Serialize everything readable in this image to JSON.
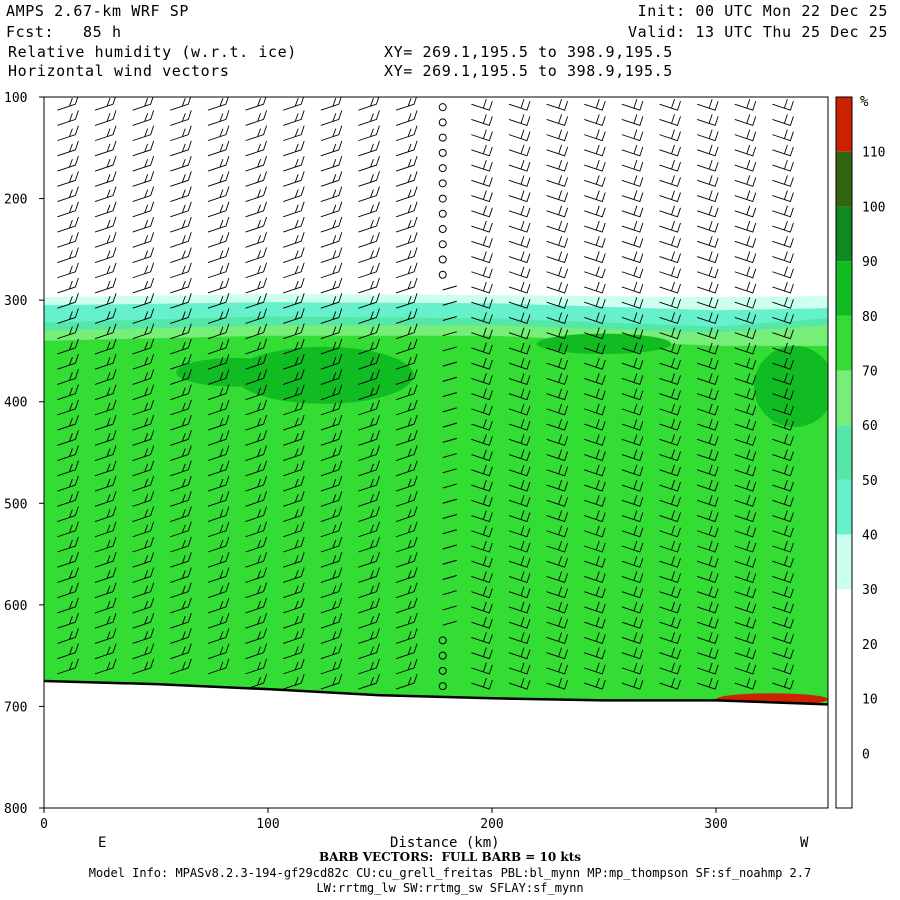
{
  "header": {
    "model": "AMPS 2.67-km WRF SP",
    "init": "Init: 00 UTC Mon 22 Dec 25",
    "fcst": "Fcst:   85 h",
    "valid": "Valid: 13 UTC Thu 25 Dec 25",
    "field1": "Relative humidity (w.r.t. ice)",
    "field2": "Horizontal wind vectors",
    "xy1": "XY= 269.1,195.5 to 398.9,195.5",
    "xy2": "XY= 269.1,195.5 to 398.9,195.5"
  },
  "footer": {
    "barb_note": "BARB VECTORS:  FULL BARB = 10 kts",
    "model_info": "Model Info: MPASv8.2.3-194-gf29cd82c CU:cu_grell_freitas PBL:bl_mynn MP:mp_thompson SF:sf_noahmp 2.7",
    "model_info2": "LW:rrtmg_lw SW:rrtmg_sw SFLAY:sf_mynn"
  },
  "chart_data": {
    "type": "heatmap",
    "xlabel": "Distance (km)",
    "ylabel": "",
    "xlim": [
      0,
      350
    ],
    "ylim": [
      800,
      100
    ],
    "x_ticks": [
      0,
      100,
      200,
      300
    ],
    "y_ticks": [
      100,
      200,
      300,
      400,
      500,
      600,
      700,
      800
    ],
    "x_end_labels": {
      "left": "E",
      "right": "W"
    },
    "colorbar": {
      "unit": "%",
      "levels": [
        0,
        10,
        20,
        30,
        40,
        50,
        60,
        70,
        80,
        90,
        100,
        110
      ],
      "colors": [
        "#ffffff",
        "#ffffff",
        "#ffffff",
        "#ccfff0",
        "#66f0cc",
        "#55e7a8",
        "#77ee77",
        "#33dd33",
        "#11bb22",
        "#118822",
        "#336611",
        "#cc2200"
      ]
    },
    "terrain_pressure": [
      [
        0,
        675
      ],
      [
        50,
        678
      ],
      [
        100,
        683
      ],
      [
        150,
        689
      ],
      [
        200,
        692
      ],
      [
        250,
        694
      ],
      [
        300,
        694
      ],
      [
        350,
        698
      ]
    ],
    "rh_layers": [
      {
        "min_rh": 30,
        "top": [
          [
            0,
            297
          ],
          [
            100,
            294
          ],
          [
            200,
            295
          ],
          [
            300,
            297
          ],
          [
            350,
            296
          ]
        ]
      },
      {
        "min_rh": 40,
        "top": [
          [
            0,
            305
          ],
          [
            100,
            302
          ],
          [
            200,
            303
          ],
          [
            300,
            310
          ],
          [
            350,
            308
          ]
        ]
      },
      {
        "min_rh": 50,
        "top": [
          [
            0,
            322
          ],
          [
            100,
            316
          ],
          [
            200,
            318
          ],
          [
            300,
            326
          ],
          [
            350,
            318
          ]
        ]
      },
      {
        "min_rh": 60,
        "top": [
          [
            0,
            330
          ],
          [
            100,
            325
          ],
          [
            200,
            325
          ],
          [
            300,
            332
          ],
          [
            350,
            325
          ]
        ]
      },
      {
        "min_rh": 70,
        "top": [
          [
            0,
            340
          ],
          [
            100,
            335
          ],
          [
            200,
            335
          ],
          [
            300,
            345
          ],
          [
            350,
            345
          ]
        ]
      }
    ],
    "rh_patches": [
      {
        "min_rh": 80,
        "cx": 85,
        "cy": 371,
        "rx": 26,
        "ry": 14
      },
      {
        "min_rh": 80,
        "cx": 125,
        "cy": 374,
        "rx": 40,
        "ry": 28
      },
      {
        "min_rh": 80,
        "cx": 250,
        "cy": 343,
        "rx": 30,
        "ry": 10
      },
      {
        "min_rh": 80,
        "cx": 335,
        "cy": 385,
        "rx": 18,
        "ry": 40
      },
      {
        "min_rh": 110,
        "cx": 325,
        "cy": 693,
        "rx": 25,
        "ry": 6
      }
    ]
  }
}
